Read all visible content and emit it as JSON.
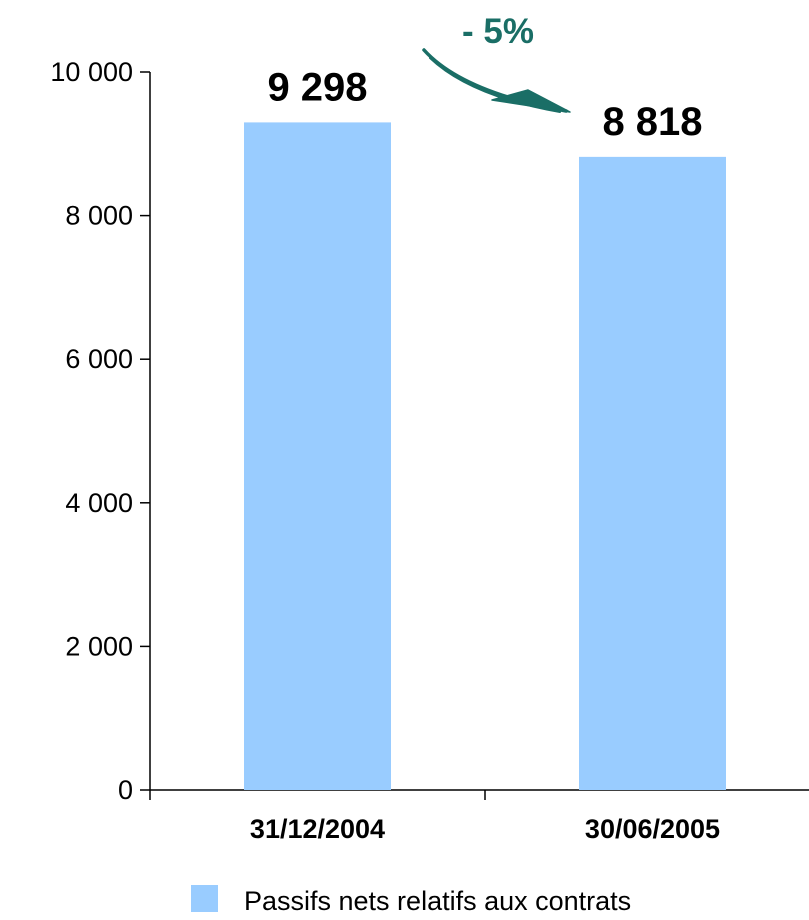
{
  "chart_data": {
    "type": "bar",
    "categories": [
      "31/12/2004",
      "30/06/2005"
    ],
    "series": [
      {
        "name": "Passifs nets relatifs aux contrats",
        "values": [
          9298,
          8818
        ],
        "value_labels": [
          "9 298",
          "8 818"
        ]
      }
    ],
    "title": "",
    "xlabel": "",
    "ylabel": "",
    "ylim": [
      0,
      10000
    ],
    "yticks": [
      0,
      2000,
      4000,
      6000,
      8000,
      10000
    ],
    "ytick_labels": [
      "0",
      "2 000",
      "4 000",
      "6 000",
      "8 000",
      "10 000"
    ],
    "grid": false,
    "legend_position": "bottom",
    "annotation": {
      "text": "- 5%",
      "from_category": 0,
      "to_category": 1
    }
  },
  "colors": {
    "bar": "#99ccff",
    "annotation": "#1a6e66",
    "axis": "#000000"
  }
}
